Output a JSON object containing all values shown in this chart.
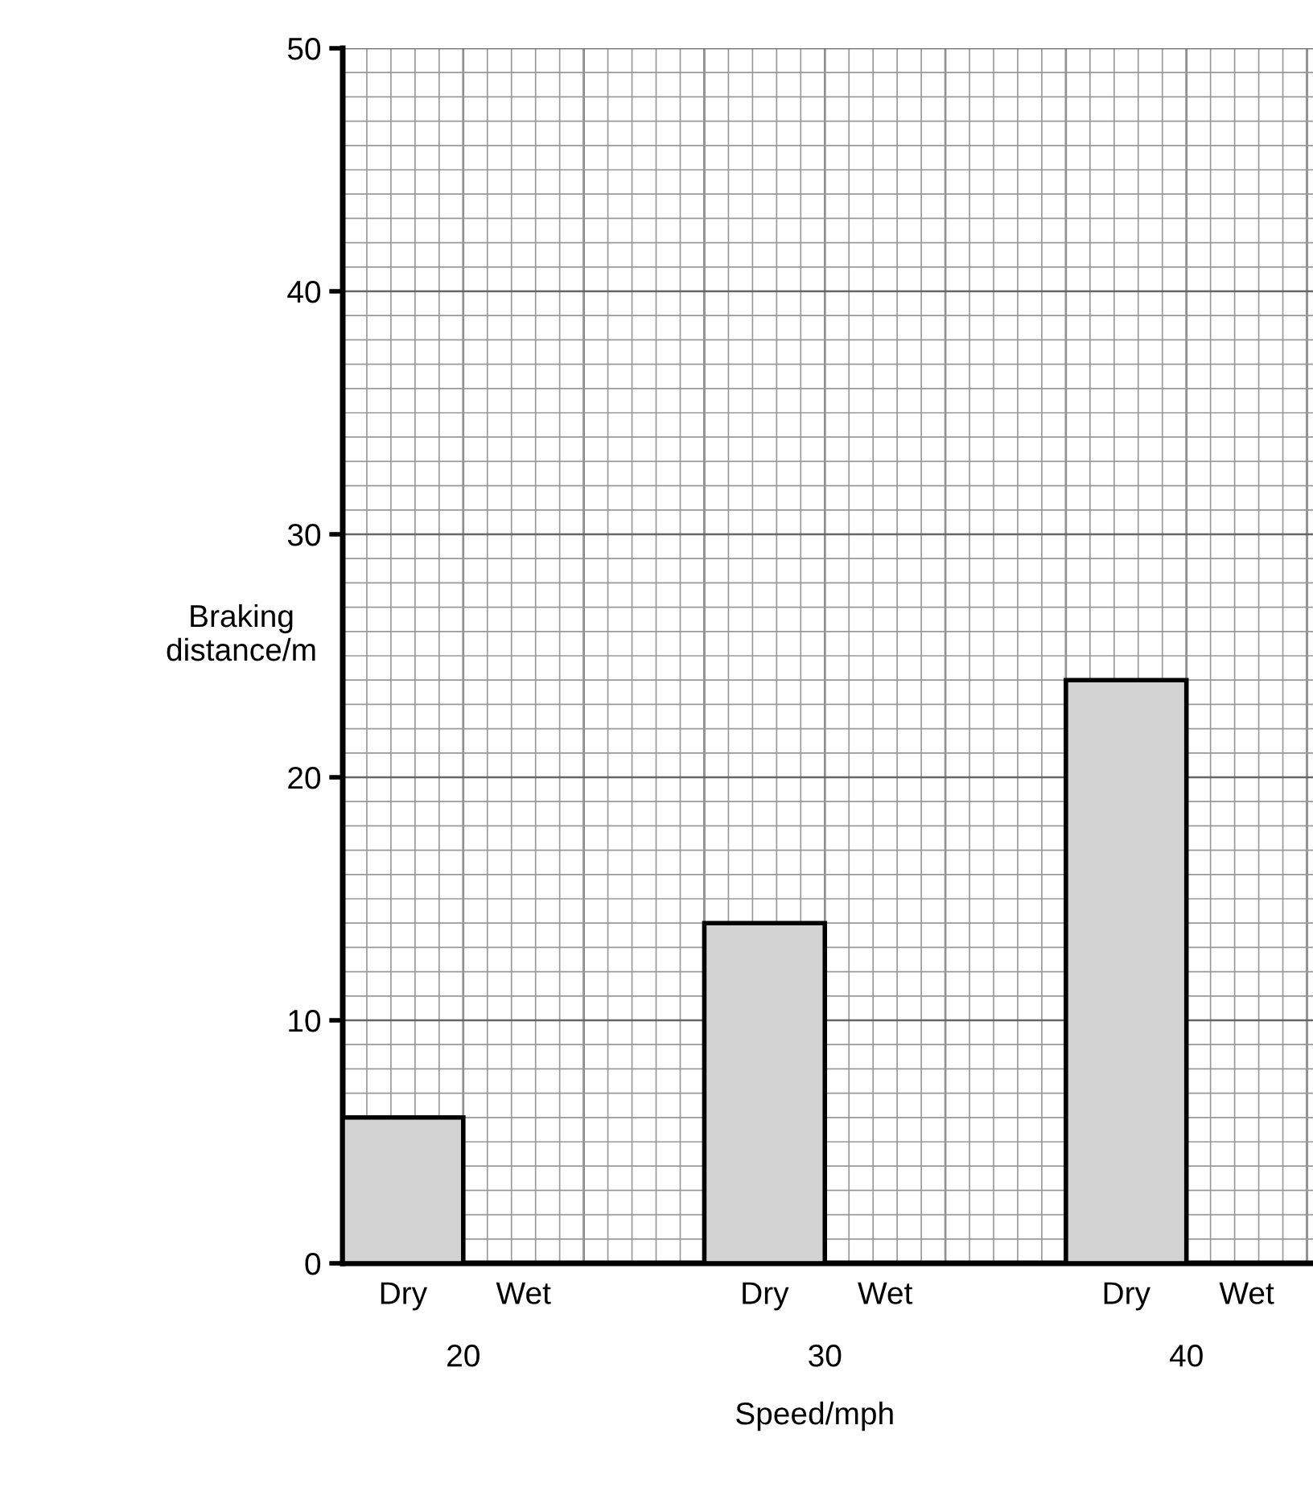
{
  "chart_data": {
    "type": "bar",
    "xlabel": "Speed/mph",
    "ylabel": "Braking\ndistance/m",
    "categories": [
      "Dry",
      "Wet",
      null,
      "Dry",
      "Wet",
      null,
      "Dry",
      "Wet"
    ],
    "values": [
      6,
      null,
      null,
      14,
      null,
      null,
      24,
      null
    ],
    "color": "#d3d3d3",
    "ylim": [
      0,
      50
    ],
    "yticks": [
      0,
      10,
      20,
      30,
      40,
      50
    ],
    "grid": true,
    "annotations": [
      "20",
      "30",
      "40"
    ]
  }
}
